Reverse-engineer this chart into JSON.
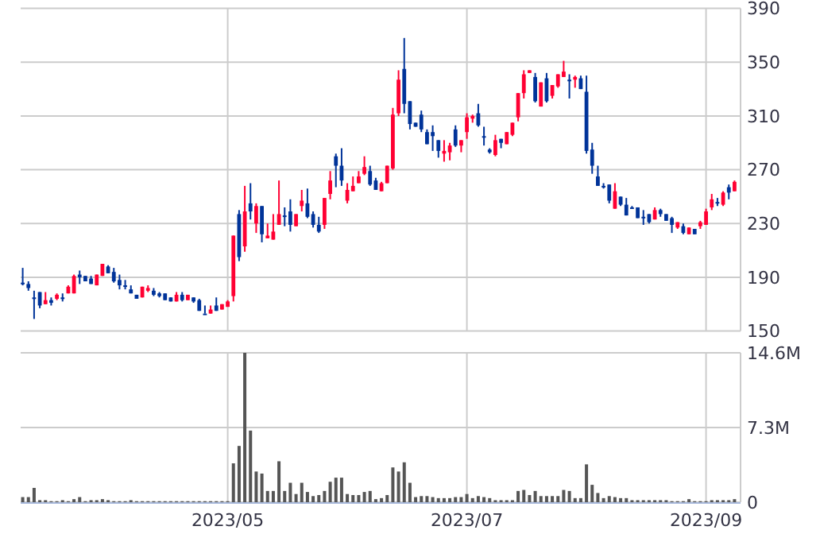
{
  "chart_data": [
    {
      "type": "candlestick",
      "categories": [
        null,
        null,
        null,
        null,
        null,
        null,
        null,
        null,
        null,
        null,
        null,
        null,
        null,
        null,
        null,
        null,
        null,
        null,
        null,
        null,
        null,
        null,
        null,
        null,
        null,
        null,
        null,
        null,
        null,
        null,
        null,
        null,
        null,
        null,
        null,
        null,
        "2023/05",
        null,
        null,
        null,
        null,
        null,
        null,
        null,
        null,
        null,
        null,
        null,
        null,
        null,
        null,
        null,
        null,
        null,
        null,
        null,
        null,
        null,
        null,
        null,
        null,
        null,
        null,
        null,
        null,
        null,
        null,
        null,
        null,
        null,
        null,
        null,
        null,
        null,
        null,
        null,
        null,
        null,
        "2023/07",
        null,
        null,
        null,
        null,
        null,
        null,
        null,
        null,
        null,
        null,
        null,
        null,
        null,
        null,
        null,
        null,
        null,
        null,
        null,
        null,
        null,
        null,
        null,
        null,
        null,
        null,
        null,
        null,
        null,
        null,
        null,
        null,
        null,
        null,
        null,
        null,
        null,
        null,
        null,
        null,
        null,
        "2023/09",
        null,
        null,
        null,
        null,
        null
      ],
      "ohlc": [
        [
          186,
          197,
          184,
          185
        ],
        [
          185,
          187,
          180,
          182
        ],
        [
          175,
          180,
          159,
          174
        ],
        [
          179,
          179,
          167,
          169
        ],
        [
          170,
          179,
          170,
          173
        ],
        [
          173,
          175,
          169,
          171
        ],
        [
          174,
          178,
          173,
          177
        ],
        [
          175,
          178,
          172,
          174
        ],
        [
          178,
          184,
          178,
          183
        ],
        [
          178,
          192,
          178,
          191
        ],
        [
          192,
          195,
          185,
          190
        ],
        [
          191,
          191,
          187,
          187
        ],
        [
          189,
          191,
          185,
          185
        ],
        [
          184,
          192,
          184,
          192
        ],
        [
          191,
          200,
          191,
          200
        ],
        [
          198,
          199,
          193,
          193
        ],
        [
          194,
          197,
          186,
          187
        ],
        [
          188,
          192,
          181,
          184
        ],
        [
          184,
          188,
          181,
          184
        ],
        [
          181,
          184,
          178,
          178
        ],
        [
          177,
          177,
          174,
          174
        ],
        [
          175,
          183,
          175,
          183
        ],
        [
          180,
          184,
          179,
          182
        ],
        [
          180,
          182,
          176,
          177
        ],
        [
          178,
          179,
          175,
          176
        ],
        [
          178,
          178,
          173,
          173
        ],
        [
          175,
          175,
          172,
          172
        ],
        [
          172,
          179,
          172,
          177
        ],
        [
          177,
          179,
          172,
          173
        ],
        [
          173,
          177,
          173,
          177
        ],
        [
          175,
          175,
          171,
          172
        ],
        [
          173,
          174,
          165,
          165
        ],
        [
          163,
          169,
          163,
          163
        ],
        [
          163,
          169,
          163,
          166
        ],
        [
          169,
          175,
          165,
          165
        ],
        [
          166,
          170,
          166,
          170
        ],
        [
          168,
          173,
          168,
          172
        ],
        [
          176,
          221,
          172,
          221
        ],
        [
          237,
          240,
          202,
          205
        ],
        [
          213,
          258,
          209,
          239
        ],
        [
          245,
          260,
          233,
          239
        ],
        [
          230,
          245,
          223,
          243
        ],
        [
          243,
          243,
          216,
          222
        ],
        [
          219,
          230,
          219,
          221
        ],
        [
          218,
          237,
          218,
          224
        ],
        [
          229,
          262,
          229,
          237
        ],
        [
          236,
          242,
          228,
          235
        ],
        [
          239,
          248,
          224,
          229
        ],
        [
          228,
          237,
          228,
          237
        ],
        [
          243,
          255,
          239,
          247
        ],
        [
          245,
          256,
          234,
          235
        ],
        [
          237,
          239,
          227,
          229
        ],
        [
          229,
          235,
          223,
          224
        ],
        [
          229,
          249,
          226,
          249
        ],
        [
          252,
          269,
          248,
          262
        ],
        [
          280,
          282,
          257,
          273
        ],
        [
          273,
          286,
          258,
          262
        ],
        [
          247,
          260,
          245,
          255
        ],
        [
          254,
          265,
          254,
          258
        ],
        [
          260,
          269,
          260,
          265
        ],
        [
          267,
          280,
          266,
          272
        ],
        [
          269,
          273,
          258,
          259
        ],
        [
          262,
          264,
          255,
          255
        ],
        [
          254,
          261,
          254,
          260
        ],
        [
          260,
          273,
          260,
          273
        ],
        [
          271,
          316,
          270,
          311
        ],
        [
          312,
          344,
          310,
          337
        ],
        [
          345,
          368,
          312,
          319
        ],
        [
          321,
          321,
          300,
          304
        ],
        [
          305,
          305,
          302,
          302
        ],
        [
          311,
          314,
          298,
          300
        ],
        [
          298,
          300,
          289,
          289
        ],
        [
          298,
          303,
          284,
          295
        ],
        [
          292,
          292,
          279,
          284
        ],
        [
          282,
          292,
          276,
          284
        ],
        [
          283,
          290,
          277,
          288
        ],
        [
          300,
          303,
          287,
          288
        ],
        [
          288,
          292,
          283,
          292
        ],
        [
          298,
          312,
          293,
          309
        ],
        [
          308,
          311,
          305,
          310
        ],
        [
          312,
          319,
          302,
          303
        ],
        [
          295,
          302,
          288,
          295
        ],
        [
          285,
          286,
          282,
          283
        ],
        [
          281,
          296,
          280,
          292
        ],
        [
          293,
          293,
          286,
          290
        ],
        [
          289,
          298,
          289,
          298
        ],
        [
          296,
          305,
          295,
          305
        ],
        [
          309,
          327,
          306,
          327
        ],
        [
          327,
          344,
          323,
          341
        ],
        [
          342,
          344,
          342,
          344
        ],
        [
          339,
          342,
          320,
          321
        ],
        [
          317,
          335,
          317,
          335
        ],
        [
          338,
          342,
          320,
          321
        ],
        [
          325,
          333,
          323,
          333
        ],
        [
          332,
          341,
          331,
          341
        ],
        [
          339,
          351,
          339,
          343
        ],
        [
          337,
          341,
          323,
          336
        ],
        [
          337,
          340,
          331,
          339
        ],
        [
          338,
          340,
          330,
          330
        ],
        [
          328,
          340,
          282,
          284
        ],
        [
          285,
          290,
          267,
          273
        ],
        [
          265,
          273,
          258,
          258
        ],
        [
          258,
          260,
          256,
          257
        ],
        [
          259,
          259,
          245,
          247
        ],
        [
          241,
          260,
          241,
          254
        ],
        [
          250,
          250,
          243,
          244
        ],
        [
          244,
          249,
          236,
          236
        ],
        [
          242,
          243,
          241,
          242
        ],
        [
          242,
          242,
          234,
          234
        ],
        [
          235,
          240,
          229,
          235
        ],
        [
          237,
          237,
          230,
          231
        ],
        [
          233,
          242,
          233,
          240
        ],
        [
          240,
          241,
          235,
          237
        ],
        [
          237,
          237,
          232,
          232
        ],
        [
          234,
          235,
          223,
          229
        ],
        [
          227,
          231,
          226,
          231
        ],
        [
          228,
          230,
          222,
          223
        ],
        [
          222,
          227,
          222,
          227
        ],
        [
          226,
          226,
          222,
          222
        ],
        [
          228,
          232,
          226,
          231
        ],
        [
          229,
          241,
          229,
          239
        ],
        [
          242,
          252,
          240,
          248
        ],
        [
          246,
          249,
          243,
          246
        ],
        [
          244,
          254,
          243,
          253
        ],
        [
          257,
          259,
          248,
          253
        ],
        [
          254,
          262,
          254,
          261
        ]
      ],
      "colors": [
        "#003399",
        "#003399",
        "#003399",
        "#003399",
        "#ff0033",
        "#003399",
        "#ff0033",
        "#003399",
        "#ff0033",
        "#ff0033",
        "#003399",
        "#003399",
        "#003399",
        "#ff0033",
        "#ff0033",
        "#003399",
        "#003399",
        "#003399",
        "#003399",
        "#003399",
        "#003399",
        "#ff0033",
        "#ff0033",
        "#003399",
        "#003399",
        "#003399",
        "#003399",
        "#ff0033",
        "#003399",
        "#ff0033",
        "#003399",
        "#003399",
        "#003399",
        "#ff0033",
        "#003399",
        "#ff0033",
        "#ff0033",
        "#ff0033",
        "#003399",
        "#ff0033",
        "#003399",
        "#ff0033",
        "#003399",
        "#ff0033",
        "#ff0033",
        "#ff0033",
        "#003399",
        "#003399",
        "#ff0033",
        "#ff0033",
        "#003399",
        "#003399",
        "#003399",
        "#ff0033",
        "#ff0033",
        "#003399",
        "#003399",
        "#ff0033",
        "#ff0033",
        "#ff0033",
        "#ff0033",
        "#003399",
        "#003399",
        "#ff0033",
        "#ff0033",
        "#ff0033",
        "#ff0033",
        "#003399",
        "#003399",
        "#003399",
        "#003399",
        "#003399",
        "#003399",
        "#003399",
        "#ff0033",
        "#ff0033",
        "#003399",
        "#ff0033",
        "#ff0033",
        "#ff0033",
        "#003399",
        "#003399",
        "#003399",
        "#ff0033",
        "#003399",
        "#ff0033",
        "#ff0033",
        "#ff0033",
        "#ff0033",
        "#ff0033",
        "#003399",
        "#ff0033",
        "#003399",
        "#ff0033",
        "#ff0033",
        "#ff0033",
        "#003399",
        "#ff0033",
        "#003399",
        "#003399",
        "#003399",
        "#003399",
        "#003399",
        "#003399",
        "#ff0033",
        "#003399",
        "#003399",
        "#003399",
        "#003399",
        "#003399",
        "#003399",
        "#ff0033",
        "#003399",
        "#003399",
        "#003399",
        "#ff0033",
        "#003399",
        "#ff0033",
        "#003399",
        "#ff0033",
        "#ff0033",
        "#ff0033",
        "#003399",
        "#ff0033",
        "#003399",
        "#ff0033"
      ],
      "ylim": [
        150,
        390
      ],
      "yticks": [
        150,
        190,
        230,
        270,
        310,
        350,
        390
      ],
      "grid": true,
      "tick_labels": "y"
    },
    {
      "type": "bar",
      "categories": [
        null,
        null,
        null,
        null,
        null,
        null,
        null,
        null,
        null,
        null,
        null,
        null,
        null,
        null,
        null,
        null,
        null,
        null,
        null,
        null,
        null,
        null,
        null,
        null,
        null,
        null,
        null,
        null,
        null,
        null,
        null,
        null,
        null,
        null,
        null,
        null,
        "2023/05",
        null,
        null,
        null,
        null,
        null,
        null,
        null,
        null,
        null,
        null,
        null,
        null,
        null,
        null,
        null,
        null,
        null,
        null,
        null,
        null,
        null,
        null,
        null,
        null,
        null,
        null,
        null,
        null,
        null,
        null,
        null,
        null,
        null,
        null,
        null,
        null,
        null,
        null,
        null,
        null,
        null,
        "2023/07",
        null,
        null,
        null,
        null,
        null,
        null,
        null,
        null,
        null,
        null,
        null,
        null,
        null,
        null,
        null,
        null,
        null,
        null,
        null,
        null,
        null,
        null,
        null,
        null,
        null,
        null,
        null,
        null,
        null,
        null,
        null,
        null,
        null,
        null,
        null,
        null,
        null,
        null,
        null,
        null,
        null,
        "2023/09",
        null,
        null,
        null,
        null,
        null
      ],
      "values": [
        0.5,
        0.5,
        1.4,
        0.2,
        0.2,
        0.1,
        0.1,
        0.2,
        0.1,
        0.3,
        0.5,
        0.1,
        0.2,
        0.2,
        0.3,
        0.2,
        0.1,
        0.1,
        0.1,
        0.2,
        0.1,
        0.1,
        0.1,
        0.1,
        0.1,
        0.1,
        0.1,
        0.1,
        0.1,
        0.1,
        0.1,
        0.1,
        0.1,
        0.1,
        0.1,
        0.1,
        0.1,
        3.8,
        5.5,
        14.6,
        7.0,
        3.0,
        2.8,
        1.1,
        1.1,
        4.0,
        1.1,
        1.9,
        0.8,
        1.9,
        1.0,
        0.6,
        0.7,
        1.1,
        2.0,
        2.4,
        2.4,
        0.8,
        0.7,
        0.7,
        1.0,
        1.1,
        0.3,
        0.4,
        0.7,
        3.4,
        3.0,
        3.9,
        1.9,
        0.5,
        0.6,
        0.6,
        0.5,
        0.4,
        0.4,
        0.4,
        0.5,
        0.5,
        0.8,
        0.4,
        0.6,
        0.5,
        0.4,
        0.2,
        0.2,
        0.2,
        0.2,
        1.1,
        1.2,
        0.7,
        1.1,
        0.6,
        0.6,
        0.6,
        0.6,
        1.2,
        1.1,
        0.4,
        0.4,
        3.7,
        1.7,
        0.9,
        0.4,
        0.6,
        0.5,
        0.4,
        0.4,
        0.2,
        0.2,
        0.2,
        0.2,
        0.2,
        0.2,
        0.2,
        0.1,
        0.1,
        0.1,
        0.3,
        0.1,
        0.1,
        0.1,
        0.2,
        0.2,
        0.2,
        0.2,
        0.3
      ],
      "color": "#555555",
      "ylim": [
        0,
        14.6
      ],
      "yticks": [
        0,
        {
          "value": 7.3,
          "label": "7.3M"
        },
        {
          "value": 14.6,
          "label": "14.6M"
        }
      ],
      "grid": true
    }
  ]
}
